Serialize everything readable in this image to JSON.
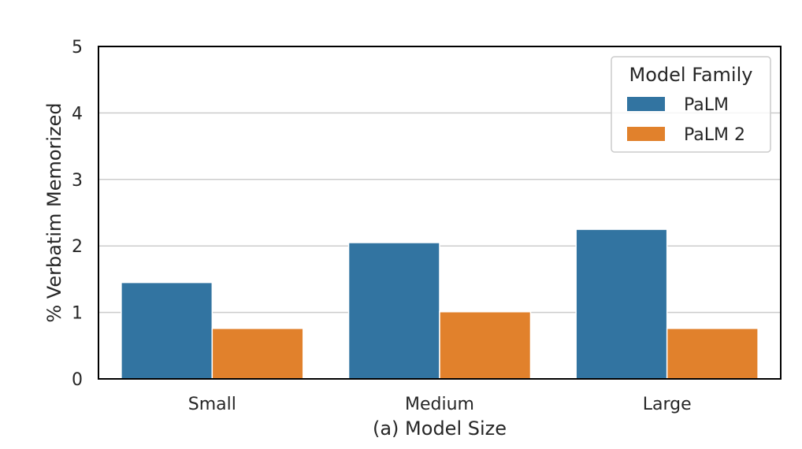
{
  "chart_data": {
    "type": "bar",
    "xlabel": "(a) Model Size",
    "ylabel": "% Verbatim Memorized",
    "categories": [
      "Small",
      "Medium",
      "Large"
    ],
    "ylim": [
      0,
      5
    ],
    "yticks": [
      "0",
      "1",
      "2",
      "3",
      "4",
      "5"
    ],
    "grid": "horizontal",
    "legend": {
      "title": "Model Family",
      "placement": "top-right"
    },
    "series": [
      {
        "name": "PaLM",
        "color": "#3274a1",
        "values": [
          1.45,
          2.05,
          2.25
        ]
      },
      {
        "name": "PaLM 2",
        "color": "#e1812c",
        "values": [
          0.76,
          1.01,
          0.76
        ]
      }
    ]
  }
}
